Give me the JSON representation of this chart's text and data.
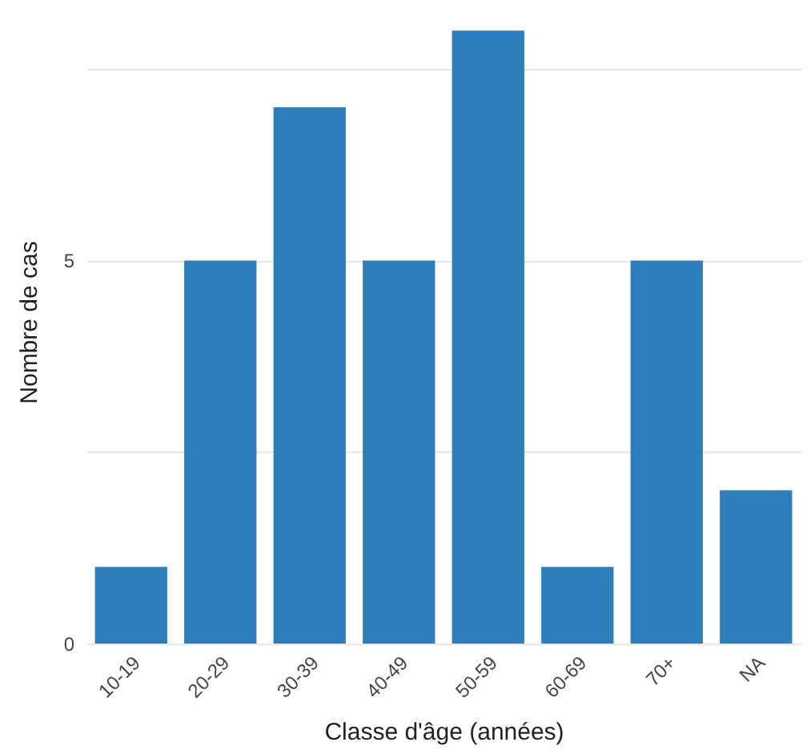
{
  "chart_data": {
    "type": "bar",
    "xlabel": "Classe d'âge (années)",
    "ylabel": "Nombre de cas",
    "categories": [
      "10-19",
      "20-29",
      "30-39",
      "40-49",
      "50-59",
      "60-69",
      "70+",
      "NA"
    ],
    "values": [
      1,
      5,
      7,
      5,
      8,
      1,
      5,
      2
    ],
    "color": "#2e7ebc",
    "ylim": [
      0,
      8.4
    ],
    "yticks": [
      0,
      {
        "value": 2.5,
        "label": null
      },
      5,
      {
        "value": 7.5,
        "label": null
      }
    ],
    "grid": "y"
  }
}
